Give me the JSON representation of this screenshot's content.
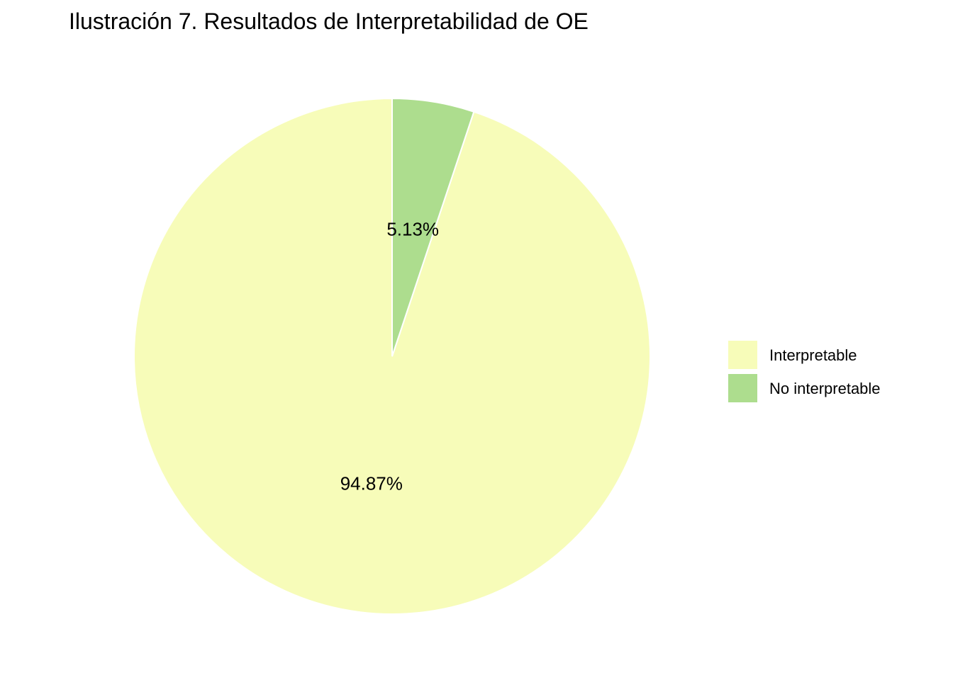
{
  "chart_data": {
    "type": "pie",
    "title": "Ilustración 7. Resultados de Interpretabilidad de OE",
    "slices": [
      {
        "label": "Interpretable",
        "value": 94.87,
        "value_label": "94.87%",
        "color": "#F7FCB9"
      },
      {
        "label": "No interpretable",
        "value": 5.13,
        "value_label": "5.13%",
        "color": "#ADDD8E"
      }
    ],
    "start_angle": "12 o'clock",
    "direction": "counter-clockwise",
    "legend_position": "right",
    "slice_border_color": "#FFFFFF"
  }
}
